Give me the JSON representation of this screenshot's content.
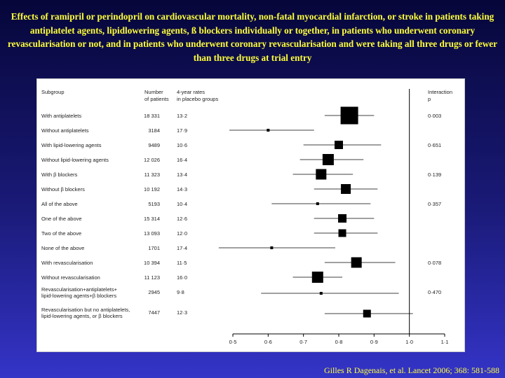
{
  "title": "Effects of ramipril or perindopril on cardiovascular mortality, non-fatal myocardial infarction, or stroke in patients taking antiplatelet agents, lipidlowering agents, ß blockers individually or together, in patients who underwent coronary revascularisation or not, and in patients who underwent coronary revascularisation and were taking all three drugs or fewer than three drugs at trial entry",
  "citation": "Gilles R Dagenais, et al. Lancet 2006; 368: 581-588",
  "colors": {
    "title": "#ffff3c",
    "marker": "#000000",
    "panel": "#ffffff"
  },
  "chart_data": {
    "type": "forest",
    "headers": {
      "subgroup": "Subgroup",
      "number_line1": "Number",
      "number_line2": "of patients",
      "rates_line1": "4-year rates",
      "rates_line2": "in placebo groups",
      "interaction_line1": "Interaction",
      "interaction_line2": "p"
    },
    "xlim": [
      0.5,
      1.1
    ],
    "xscale": "linear",
    "reference_line": 1.0,
    "xticks": [
      "0·5",
      "0·6",
      "0·7",
      "0·8",
      "0·9",
      "1·0",
      "1·1"
    ],
    "xtick_values": [
      0.5,
      0.6,
      0.7,
      0.8,
      0.9,
      1.0,
      1.1
    ],
    "rows": [
      {
        "label": [
          "With antiplatelets"
        ],
        "n": "18 331",
        "rate": "13·2",
        "est": 0.83,
        "lo": 0.76,
        "hi": 0.9,
        "weight": 25,
        "p": "0·003"
      },
      {
        "label": [
          "Without antiplatelets"
        ],
        "n": "3184",
        "rate": "17·9",
        "est": 0.6,
        "lo": 0.49,
        "hi": 0.73,
        "weight": 4,
        "p": ""
      },
      {
        "label": [
          "With lipid-lowering agents"
        ],
        "n": "9489",
        "rate": "10·6",
        "est": 0.8,
        "lo": 0.7,
        "hi": 0.92,
        "weight": 12,
        "p": "0·651"
      },
      {
        "label": [
          "Without lipid-lowering agents"
        ],
        "n": "12 026",
        "rate": "16·4",
        "est": 0.77,
        "lo": 0.69,
        "hi": 0.87,
        "weight": 16,
        "p": ""
      },
      {
        "label": [
          "With β blockers"
        ],
        "n": "11 323",
        "rate": "13·4",
        "est": 0.75,
        "lo": 0.67,
        "hi": 0.84,
        "weight": 15,
        "p": "0·139"
      },
      {
        "label": [
          "Without β blockers"
        ],
        "n": "10 192",
        "rate": "14·3",
        "est": 0.82,
        "lo": 0.73,
        "hi": 0.91,
        "weight": 14,
        "p": ""
      },
      {
        "label": [
          "All of the above"
        ],
        "n": "5193",
        "rate": "10·4",
        "est": 0.74,
        "lo": 0.61,
        "hi": 0.89,
        "weight": 4,
        "p": "0·357"
      },
      {
        "label": [
          "One of the above"
        ],
        "n": "15 314",
        "rate": "12·6",
        "est": 0.81,
        "lo": 0.73,
        "hi": 0.9,
        "weight": 12,
        "p": ""
      },
      {
        "label": [
          "Two of the above"
        ],
        "n": "13 093",
        "rate": "12·0",
        "est": 0.81,
        "lo": 0.73,
        "hi": 0.91,
        "weight": 11,
        "p": ""
      },
      {
        "label": [
          "None of the above"
        ],
        "n": "1701",
        "rate": "17·4",
        "est": 0.61,
        "lo": 0.46,
        "hi": 0.79,
        "weight": 4,
        "p": ""
      },
      {
        "label": [
          "With revascularisation"
        ],
        "n": "10 394",
        "rate": "11·5",
        "est": 0.85,
        "lo": 0.76,
        "hi": 0.96,
        "weight": 15,
        "p": "0·078"
      },
      {
        "label": [
          "Without revascularisation"
        ],
        "n": "11 123",
        "rate": "16·0",
        "est": 0.74,
        "lo": 0.67,
        "hi": 0.81,
        "weight": 16,
        "p": ""
      },
      {
        "label": [
          "Revascularisation+antiplatelets+",
          "lipid-lowering agents+β blockers"
        ],
        "n": "2945",
        "rate": "9·8",
        "est": 0.75,
        "lo": 0.58,
        "hi": 0.97,
        "weight": 4,
        "p": "0·470"
      },
      {
        "label": [
          "Revascularisation but no antiplatelets,",
          "lipid-lowering agents, or β blockers"
        ],
        "n": "7447",
        "rate": "12·3",
        "est": 0.88,
        "lo": 0.76,
        "hi": 1.01,
        "weight": 11,
        "p": ""
      }
    ]
  }
}
